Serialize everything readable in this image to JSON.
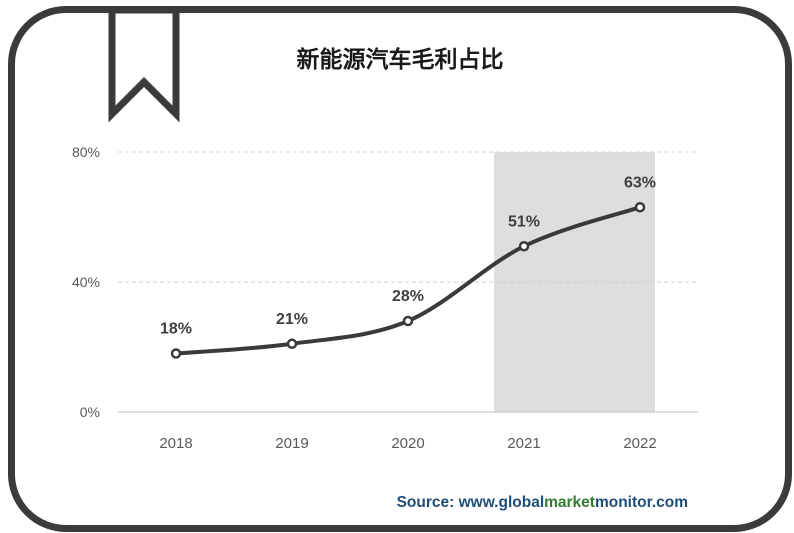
{
  "chart_data": {
    "type": "line",
    "title": "新能源汽车毛利占比",
    "categories": [
      "2018",
      "2019",
      "2020",
      "2021",
      "2022"
    ],
    "values": [
      18,
      21,
      28,
      51,
      63
    ],
    "data_labels": [
      "18%",
      "21%",
      "28%",
      "51%",
      "63%"
    ],
    "ylim": [
      0,
      80
    ],
    "yticks": [
      0,
      40,
      80
    ],
    "ytick_labels": [
      "0%",
      "40%",
      "80%"
    ],
    "highlight_categories": [
      "2021",
      "2022"
    ],
    "grid": true,
    "legend": "none",
    "colors": {
      "line": "#3a3a3a",
      "highlight": "#dedede",
      "grid": "#cfcfcf"
    }
  },
  "source": {
    "prefix": "Source: www.",
    "global": "global",
    "market": "market",
    "monitor": "monitor",
    "suffix": ".com"
  }
}
